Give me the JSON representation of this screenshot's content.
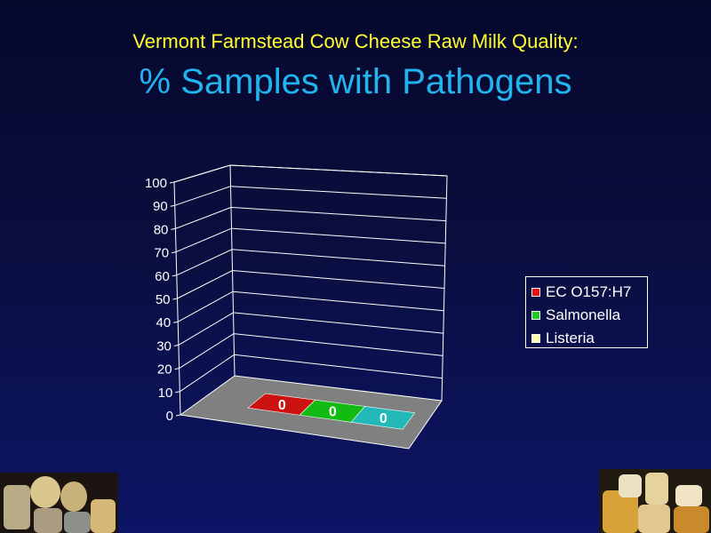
{
  "slide": {
    "title_line1": "Vermont Farmstead Cow Cheese Raw Milk Quality:",
    "title_line2": "% Samples with Pathogens"
  },
  "chart_data": {
    "type": "bar",
    "categories": [
      "EC O157:H7",
      "Salmonella",
      "Listeria"
    ],
    "values": [
      0,
      0,
      0
    ],
    "data_labels": [
      "0",
      "0",
      "0"
    ],
    "ylim": [
      0,
      100
    ],
    "yticks": [
      "0",
      "10",
      "20",
      "30",
      "40",
      "50",
      "60",
      "70",
      "80",
      "90",
      "100"
    ],
    "grid": true,
    "style": "3d",
    "legend_position": "right",
    "colors": [
      "#cc1111",
      "#11bb11",
      "#22b8b8"
    ],
    "legend_colors": [
      "#ee1111",
      "#22cc22",
      "#ffffaa"
    ]
  },
  "legend": {
    "items": [
      "EC O157:H7",
      "Salmonella",
      "Listeria"
    ]
  },
  "images": {
    "left": "cheese-wheels-photo",
    "right": "cheese-blocks-photo"
  }
}
